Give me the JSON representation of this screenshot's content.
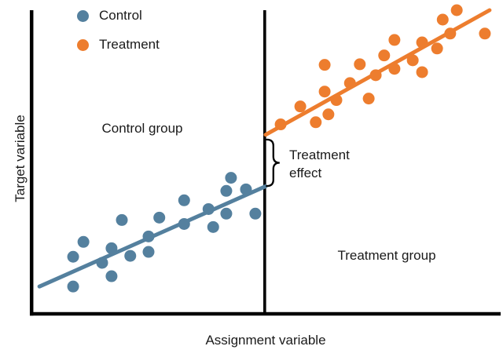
{
  "figure": {
    "background": "#ffffff",
    "text_color": "#1a1a1a",
    "axis_color": "#000000"
  },
  "legend": {
    "items": [
      {
        "label": "Control",
        "color": "#54809E"
      },
      {
        "label": "Treatment",
        "color": "#ED7D2E"
      }
    ]
  },
  "labels": {
    "y_axis": "Target variable",
    "x_axis": "Assignment variable",
    "control_region": "Control group",
    "treatment_region": "Treatment group",
    "effect_line1": "Treatment",
    "effect_line2": "effect"
  },
  "chart_data": {
    "type": "scatter",
    "title": "",
    "xlabel": "Assignment variable",
    "ylabel": "Target variable",
    "x_range": [
      0,
      100
    ],
    "y_range": [
      0,
      100
    ],
    "grid": false,
    "legend_position": "top-left",
    "cutoff_x": 49.8,
    "series": [
      {
        "name": "Control",
        "color": "#54809E",
        "marker_radius": 7.5,
        "points": [
          [
            8.9,
            18.8
          ],
          [
            8.9,
            9.0
          ],
          [
            11.1,
            23.7
          ],
          [
            15.1,
            16.8
          ],
          [
            17.1,
            21.6
          ],
          [
            17.1,
            12.4
          ],
          [
            19.3,
            30.9
          ],
          [
            21.1,
            19.1
          ],
          [
            25.0,
            25.5
          ],
          [
            25.0,
            20.4
          ],
          [
            27.3,
            31.7
          ],
          [
            32.6,
            37.4
          ],
          [
            32.6,
            29.6
          ],
          [
            37.8,
            34.5
          ],
          [
            38.8,
            28.6
          ],
          [
            41.6,
            40.5
          ],
          [
            41.6,
            33.0
          ],
          [
            42.6,
            44.8
          ],
          [
            45.8,
            41.0
          ],
          [
            47.8,
            33.0
          ]
        ],
        "fit_line": {
          "x1": 1.7,
          "y1": 9.0,
          "x2": 50.0,
          "y2": 42.0
        }
      },
      {
        "name": "Treatment",
        "color": "#ED7D2E",
        "marker_radius": 7.5,
        "points": [
          [
            53.2,
            62.4
          ],
          [
            57.4,
            68.3
          ],
          [
            60.7,
            63.1
          ],
          [
            62.6,
            82.0
          ],
          [
            62.6,
            73.2
          ],
          [
            63.4,
            65.7
          ],
          [
            65.1,
            70.4
          ],
          [
            68.0,
            76.0
          ],
          [
            70.1,
            82.2
          ],
          [
            72.0,
            70.9
          ],
          [
            73.5,
            78.6
          ],
          [
            75.3,
            85.1
          ],
          [
            77.5,
            90.2
          ],
          [
            77.5,
            80.7
          ],
          [
            81.4,
            83.5
          ],
          [
            83.4,
            89.4
          ],
          [
            83.4,
            79.6
          ],
          [
            86.6,
            87.4
          ],
          [
            87.8,
            96.9
          ],
          [
            89.4,
            92.3
          ],
          [
            90.8,
            100.0
          ],
          [
            96.8,
            92.3
          ]
        ],
        "fit_line": {
          "x1": 50.0,
          "y1": 59.0,
          "x2": 97.8,
          "y2": 100.0
        }
      }
    ],
    "annotations": {
      "treatment_effect_brace": {
        "x": 49.8,
        "y_top": 57.4,
        "y_bottom": 42.1
      }
    }
  }
}
